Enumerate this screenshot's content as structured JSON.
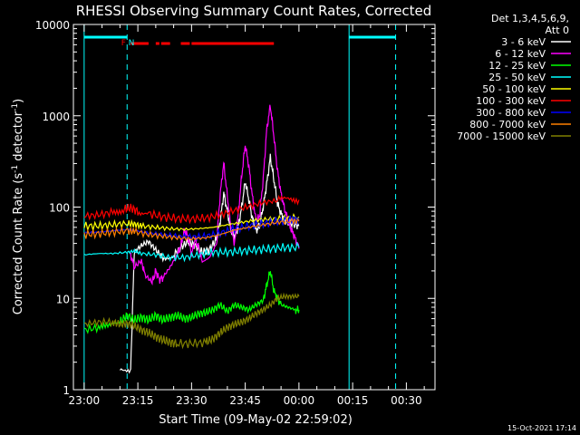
{
  "chart_data": {
    "type": "line",
    "title": "RHESSI Observing Summary Count Rates, Corrected",
    "xlabel": "Start Time (09-May-02 22:59:02)",
    "ylabel_main": "Corrected Count Rate (s",
    "ylabel_sup1": "-1",
    "ylabel_mid": " detector",
    "ylabel_sup2": "-1",
    "ylabel_end": ")",
    "footer": "15-Oct-2021 17:14",
    "y_scale": "log",
    "ylim": [
      1,
      10000
    ],
    "xlim": [
      -3,
      98
    ],
    "x_ticks": [
      {
        "v": 0,
        "label": "23:00"
      },
      {
        "v": 15,
        "label": "23:15"
      },
      {
        "v": 30,
        "label": "23:30"
      },
      {
        "v": 45,
        "label": "23:45"
      },
      {
        "v": 60,
        "label": "00:00"
      },
      {
        "v": 75,
        "label": "00:15"
      },
      {
        "v": 90,
        "label": "00:30"
      }
    ],
    "y_ticks": [
      {
        "v": 1,
        "label": "1"
      },
      {
        "v": 10,
        "label": "10"
      },
      {
        "v": 100,
        "label": "100"
      },
      {
        "v": 1000,
        "label": "1000"
      },
      {
        "v": 10000,
        "label": "10000"
      }
    ],
    "legend_header": [
      "Det 1,3,4,5,6,9,",
      "Att 0"
    ],
    "series": [
      {
        "name": "3 - 6 keV",
        "color": "#ffffff",
        "points": [
          [
            10,
            1.7
          ],
          [
            13,
            1.7
          ],
          [
            14,
            32
          ],
          [
            16,
            38
          ],
          [
            18,
            42
          ],
          [
            20,
            34
          ],
          [
            22,
            28
          ],
          [
            25,
            30
          ],
          [
            27,
            36
          ],
          [
            29,
            42
          ],
          [
            31,
            38
          ],
          [
            33,
            32
          ],
          [
            35,
            34
          ],
          [
            37,
            45
          ],
          [
            38,
            70
          ],
          [
            39,
            140
          ],
          [
            40,
            90
          ],
          [
            41,
            55
          ],
          [
            42,
            48
          ],
          [
            43,
            60
          ],
          [
            44,
            100
          ],
          [
            45,
            190
          ],
          [
            46,
            120
          ],
          [
            47,
            75
          ],
          [
            48,
            55
          ],
          [
            49,
            62
          ],
          [
            50,
            100
          ],
          [
            51,
            180
          ],
          [
            52,
            350
          ],
          [
            53,
            200
          ],
          [
            54,
            110
          ],
          [
            55,
            85
          ],
          [
            56,
            72
          ],
          [
            57,
            68
          ],
          [
            59,
            65
          ],
          [
            60,
            62
          ]
        ]
      },
      {
        "name": "6 - 12 keV",
        "color": "#ff00ff",
        "points": [
          [
            13,
            30
          ],
          [
            14,
            22
          ],
          [
            16,
            26
          ],
          [
            17,
            18
          ],
          [
            19,
            15
          ],
          [
            20,
            20
          ],
          [
            21,
            16
          ],
          [
            22,
            17
          ],
          [
            24,
            22
          ],
          [
            26,
            30
          ],
          [
            27,
            38
          ],
          [
            28,
            55
          ],
          [
            29,
            48
          ],
          [
            30,
            30
          ],
          [
            31,
            45
          ],
          [
            32,
            35
          ],
          [
            33,
            25
          ],
          [
            35,
            28
          ],
          [
            37,
            40
          ],
          [
            38,
            140
          ],
          [
            39,
            300
          ],
          [
            40,
            130
          ],
          [
            41,
            60
          ],
          [
            42,
            40
          ],
          [
            43,
            80
          ],
          [
            44,
            220
          ],
          [
            45,
            480
          ],
          [
            46,
            280
          ],
          [
            47,
            130
          ],
          [
            48,
            70
          ],
          [
            49,
            80
          ],
          [
            50,
            200
          ],
          [
            51,
            700
          ],
          [
            52,
            1300
          ],
          [
            53,
            600
          ],
          [
            54,
            250
          ],
          [
            55,
            140
          ],
          [
            56,
            95
          ],
          [
            57,
            70
          ],
          [
            58,
            55
          ],
          [
            59,
            45
          ],
          [
            60,
            35
          ]
        ]
      },
      {
        "name": "12 - 25 keV",
        "color": "#00ff00",
        "points": [
          [
            0,
            4.5
          ],
          [
            4,
            4.8
          ],
          [
            7,
            4.8
          ],
          [
            10,
            5.5
          ],
          [
            12,
            6.5
          ],
          [
            14,
            5.8
          ],
          [
            16,
            6.2
          ],
          [
            18,
            5.8
          ],
          [
            20,
            6.5
          ],
          [
            22,
            5.8
          ],
          [
            24,
            6.2
          ],
          [
            26,
            6.5
          ],
          [
            28,
            6.0
          ],
          [
            30,
            6.2
          ],
          [
            32,
            6.8
          ],
          [
            34,
            7.0
          ],
          [
            36,
            7.5
          ],
          [
            38,
            8.5
          ],
          [
            40,
            7.2
          ],
          [
            42,
            8.5
          ],
          [
            44,
            8.0
          ],
          [
            46,
            7.5
          ],
          [
            48,
            8.5
          ],
          [
            50,
            9.5
          ],
          [
            51,
            14
          ],
          [
            52,
            20
          ],
          [
            53,
            12
          ],
          [
            54,
            10
          ],
          [
            55,
            8.5
          ],
          [
            57,
            8.0
          ],
          [
            59,
            7.5
          ],
          [
            60,
            7.5
          ]
        ]
      },
      {
        "name": "25 - 50 keV",
        "color": "#00ffff",
        "points": [
          [
            0,
            30
          ],
          [
            4,
            31
          ],
          [
            8,
            31
          ],
          [
            12,
            32
          ],
          [
            14,
            33
          ],
          [
            16,
            31
          ],
          [
            20,
            30
          ],
          [
            24,
            28
          ],
          [
            28,
            28
          ],
          [
            32,
            30
          ],
          [
            36,
            32
          ],
          [
            40,
            32
          ],
          [
            44,
            33
          ],
          [
            48,
            34
          ],
          [
            52,
            35
          ],
          [
            56,
            36
          ],
          [
            60,
            36
          ]
        ]
      },
      {
        "name": "50 - 100 keV",
        "color": "#ffff00",
        "points": [
          [
            0,
            62
          ],
          [
            4,
            62
          ],
          [
            8,
            64
          ],
          [
            12,
            66
          ],
          [
            14,
            65
          ],
          [
            16,
            62
          ],
          [
            20,
            60
          ],
          [
            24,
            58
          ],
          [
            28,
            57
          ],
          [
            32,
            58
          ],
          [
            36,
            60
          ],
          [
            40,
            64
          ],
          [
            44,
            68
          ],
          [
            48,
            72
          ],
          [
            52,
            74
          ],
          [
            56,
            76
          ],
          [
            60,
            78
          ]
        ]
      },
      {
        "name": "100 - 300 keV",
        "color": "#ff0000",
        "points": [
          [
            0,
            80
          ],
          [
            4,
            82
          ],
          [
            8,
            88
          ],
          [
            11,
            95
          ],
          [
            13,
            98
          ],
          [
            15,
            90
          ],
          [
            18,
            85
          ],
          [
            22,
            78
          ],
          [
            26,
            75
          ],
          [
            30,
            74
          ],
          [
            34,
            76
          ],
          [
            38,
            82
          ],
          [
            42,
            92
          ],
          [
            46,
            102
          ],
          [
            50,
            112
          ],
          [
            54,
            118
          ],
          [
            57,
            121
          ],
          [
            60,
            120
          ]
        ]
      },
      {
        "name": "300 - 800 keV",
        "color": "#0000ff",
        "points": [
          [
            0,
            52
          ],
          [
            4,
            53
          ],
          [
            8,
            55
          ],
          [
            12,
            57
          ],
          [
            14,
            56
          ],
          [
            18,
            52
          ],
          [
            22,
            50
          ],
          [
            26,
            48
          ],
          [
            30,
            47
          ],
          [
            34,
            48
          ],
          [
            38,
            52
          ],
          [
            42,
            58
          ],
          [
            46,
            62
          ],
          [
            50,
            66
          ],
          [
            54,
            70
          ],
          [
            58,
            72
          ],
          [
            60,
            72
          ]
        ]
      },
      {
        "name": "800 - 7000 keV",
        "color": "#ff8000",
        "points": [
          [
            0,
            50
          ],
          [
            4,
            51
          ],
          [
            8,
            53
          ],
          [
            12,
            55
          ],
          [
            14,
            54
          ],
          [
            18,
            50
          ],
          [
            22,
            48
          ],
          [
            26,
            46
          ],
          [
            30,
            45
          ],
          [
            34,
            46
          ],
          [
            38,
            50
          ],
          [
            42,
            56
          ],
          [
            46,
            60
          ],
          [
            50,
            64
          ],
          [
            54,
            68
          ],
          [
            58,
            70
          ],
          [
            60,
            70
          ]
        ]
      },
      {
        "name": "7000 - 15000 keV",
        "color": "#808000",
        "points": [
          [
            0,
            5.2
          ],
          [
            4,
            5.5
          ],
          [
            8,
            5.5
          ],
          [
            10,
            5.2
          ],
          [
            12,
            5.3
          ],
          [
            14,
            5.0
          ],
          [
            16,
            4.5
          ],
          [
            18,
            4.2
          ],
          [
            20,
            3.8
          ],
          [
            22,
            3.5
          ],
          [
            24,
            3.3
          ],
          [
            26,
            3.2
          ],
          [
            30,
            3.2
          ],
          [
            34,
            3.3
          ],
          [
            36,
            3.6
          ],
          [
            38,
            4.2
          ],
          [
            40,
            4.8
          ],
          [
            42,
            5.2
          ],
          [
            44,
            5.5
          ],
          [
            46,
            6.0
          ],
          [
            48,
            6.8
          ],
          [
            50,
            7.5
          ],
          [
            52,
            8.5
          ],
          [
            54,
            10
          ],
          [
            56,
            10.5
          ],
          [
            58,
            10.5
          ],
          [
            60,
            10.5
          ]
        ]
      }
    ],
    "cyan_solid_lines": [
      0,
      74
    ],
    "cyan_dashed_lines": [
      12,
      87
    ],
    "cyan_top_bars": [
      [
        0,
        12
      ],
      [
        74,
        87
      ]
    ],
    "red_top_segments": [
      [
        13,
        18
      ],
      [
        20,
        21
      ],
      [
        21.5,
        24
      ],
      [
        27,
        29.5
      ],
      [
        30,
        53
      ]
    ],
    "flag_labels": [
      {
        "text": "F",
        "x": 11,
        "color": "#ff0000"
      },
      {
        "text": "N",
        "x": 13.2,
        "color": "#00ffff"
      }
    ]
  }
}
